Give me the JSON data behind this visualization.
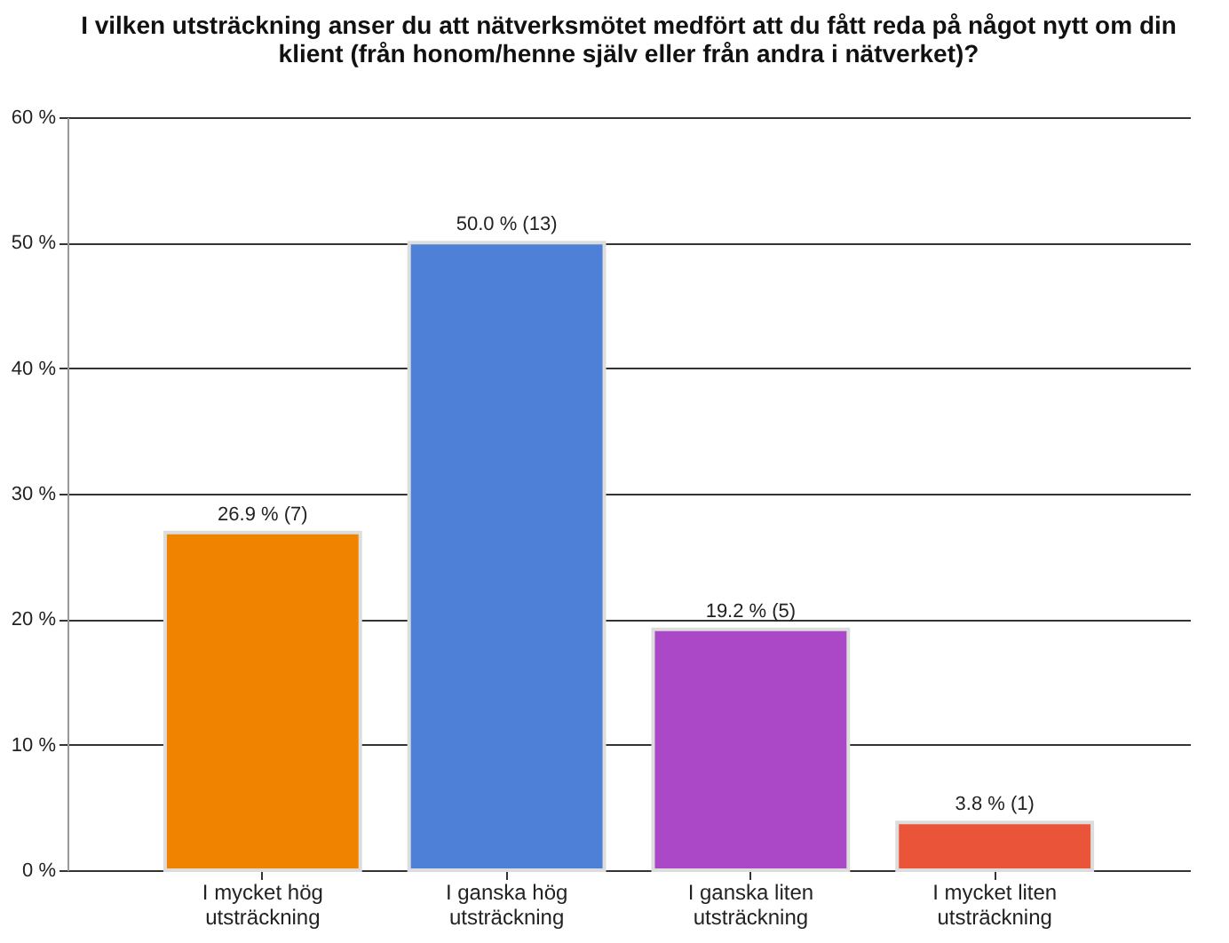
{
  "chart_data": {
    "type": "bar",
    "title": "I vilken utsträckning anser du att nätverksmötet medfört att du fått reda på något nytt om din klient (från honom/henne själv eller från andra i nätverket)?",
    "categories": [
      "I mycket hög utsträckning",
      "I ganska hög utsträckning",
      "I ganska liten utsträckning",
      "I mycket liten utsträckning"
    ],
    "values": [
      26.9,
      50.0,
      19.2,
      3.8
    ],
    "colors": [
      "#f08400",
      "#4f80d8",
      "#aa48c8",
      "#ea5438"
    ],
    "value_labels": [
      "26.9 % (7)",
      "50.0 % (13)",
      "19.2 % (5)",
      "3.8 % (1)"
    ],
    "ylim": [
      0,
      60
    ],
    "yticks": [
      {
        "value": 0,
        "label": "0 %"
      },
      {
        "value": 10,
        "label": "10 %"
      },
      {
        "value": 20,
        "label": "20 %"
      },
      {
        "value": 30,
        "label": "30 %"
      },
      {
        "value": 40,
        "label": "40 %"
      },
      {
        "value": 50,
        "label": "50 %"
      },
      {
        "value": 60,
        "label": "60 %"
      }
    ],
    "grid": "y",
    "legend": false
  }
}
